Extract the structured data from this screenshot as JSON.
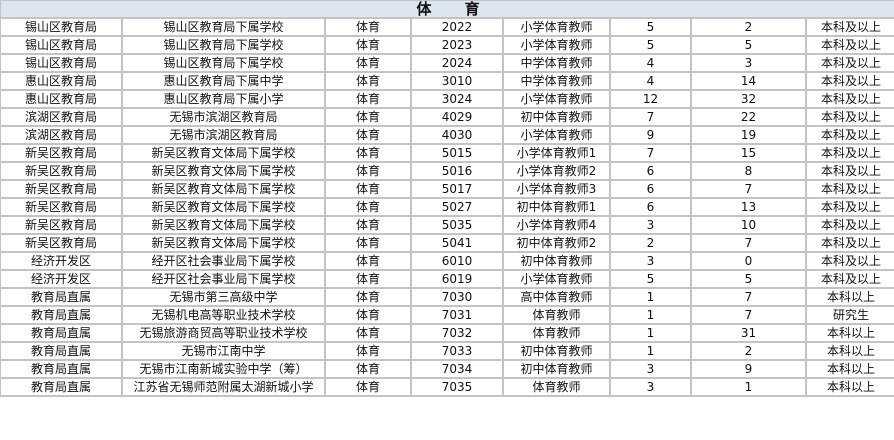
{
  "header": {
    "title": "体 育"
  },
  "rows": [
    [
      "锡山区教育局",
      "锡山区教育局下属学校",
      "体育",
      "2022",
      "小学体育教师",
      "5",
      "2",
      "本科及以上"
    ],
    [
      "锡山区教育局",
      "锡山区教育局下属学校",
      "体育",
      "2023",
      "小学体育教师",
      "5",
      "5",
      "本科及以上"
    ],
    [
      "锡山区教育局",
      "锡山区教育局下属学校",
      "体育",
      "2024",
      "中学体育教师",
      "4",
      "3",
      "本科及以上"
    ],
    [
      "惠山区教育局",
      "惠山区教育局下属中学",
      "体育",
      "3010",
      "中学体育教师",
      "4",
      "14",
      "本科及以上"
    ],
    [
      "惠山区教育局",
      "惠山区教育局下属小学",
      "体育",
      "3024",
      "小学体育教师",
      "12",
      "32",
      "本科及以上"
    ],
    [
      "滨湖区教育局",
      "无锡市滨湖区教育局",
      "体育",
      "4029",
      "初中体育教师",
      "7",
      "22",
      "本科及以上"
    ],
    [
      "滨湖区教育局",
      "无锡市滨湖区教育局",
      "体育",
      "4030",
      "小学体育教师",
      "9",
      "19",
      "本科及以上"
    ],
    [
      "新吴区教育局",
      "新吴区教育文体局下属学校",
      "体育",
      "5015",
      "小学体育教师1",
      "7",
      "15",
      "本科及以上"
    ],
    [
      "新吴区教育局",
      "新吴区教育文体局下属学校",
      "体育",
      "5016",
      "小学体育教师2",
      "6",
      "8",
      "本科及以上"
    ],
    [
      "新吴区教育局",
      "新吴区教育文体局下属学校",
      "体育",
      "5017",
      "小学体育教师3",
      "6",
      "7",
      "本科及以上"
    ],
    [
      "新吴区教育局",
      "新吴区教育文体局下属学校",
      "体育",
      "5027",
      "初中体育教师1",
      "6",
      "13",
      "本科及以上"
    ],
    [
      "新吴区教育局",
      "新吴区教育文体局下属学校",
      "体育",
      "5035",
      "小学体育教师4",
      "3",
      "10",
      "本科及以上"
    ],
    [
      "新吴区教育局",
      "新吴区教育文体局下属学校",
      "体育",
      "5041",
      "初中体育教师2",
      "2",
      "7",
      "本科及以上"
    ],
    [
      "经济开发区",
      "经开区社会事业局下属学校",
      "体育",
      "6010",
      "初中体育教师",
      "3",
      "0",
      "本科及以上"
    ],
    [
      "经济开发区",
      "经开区社会事业局下属学校",
      "体育",
      "6019",
      "小学体育教师",
      "5",
      "5",
      "本科及以上"
    ],
    [
      "教育局直属",
      "无锡市第三高级中学",
      "体育",
      "7030",
      "高中体育教师",
      "1",
      "7",
      "本科以上"
    ],
    [
      "教育局直属",
      "无锡机电高等职业技术学校",
      "体育",
      "7031",
      "体育教师",
      "1",
      "7",
      "研究生"
    ],
    [
      "教育局直属",
      "无锡旅游商贸高等职业技术学校",
      "体育",
      "7032",
      "体育教师",
      "1",
      "31",
      "本科以上"
    ],
    [
      "教育局直属",
      "无锡市江南中学",
      "体育",
      "7033",
      "初中体育教师",
      "1",
      "2",
      "本科以上"
    ],
    [
      "教育局直属",
      "无锡市江南新城实验中学（筹）",
      "体育",
      "7034",
      "初中体育教师",
      "3",
      "9",
      "本科以上"
    ],
    [
      "教育局直属",
      "江苏省无锡师范附属太湖新城小学",
      "体育",
      "7035",
      "体育教师",
      "3",
      "1",
      "本科以上"
    ]
  ]
}
